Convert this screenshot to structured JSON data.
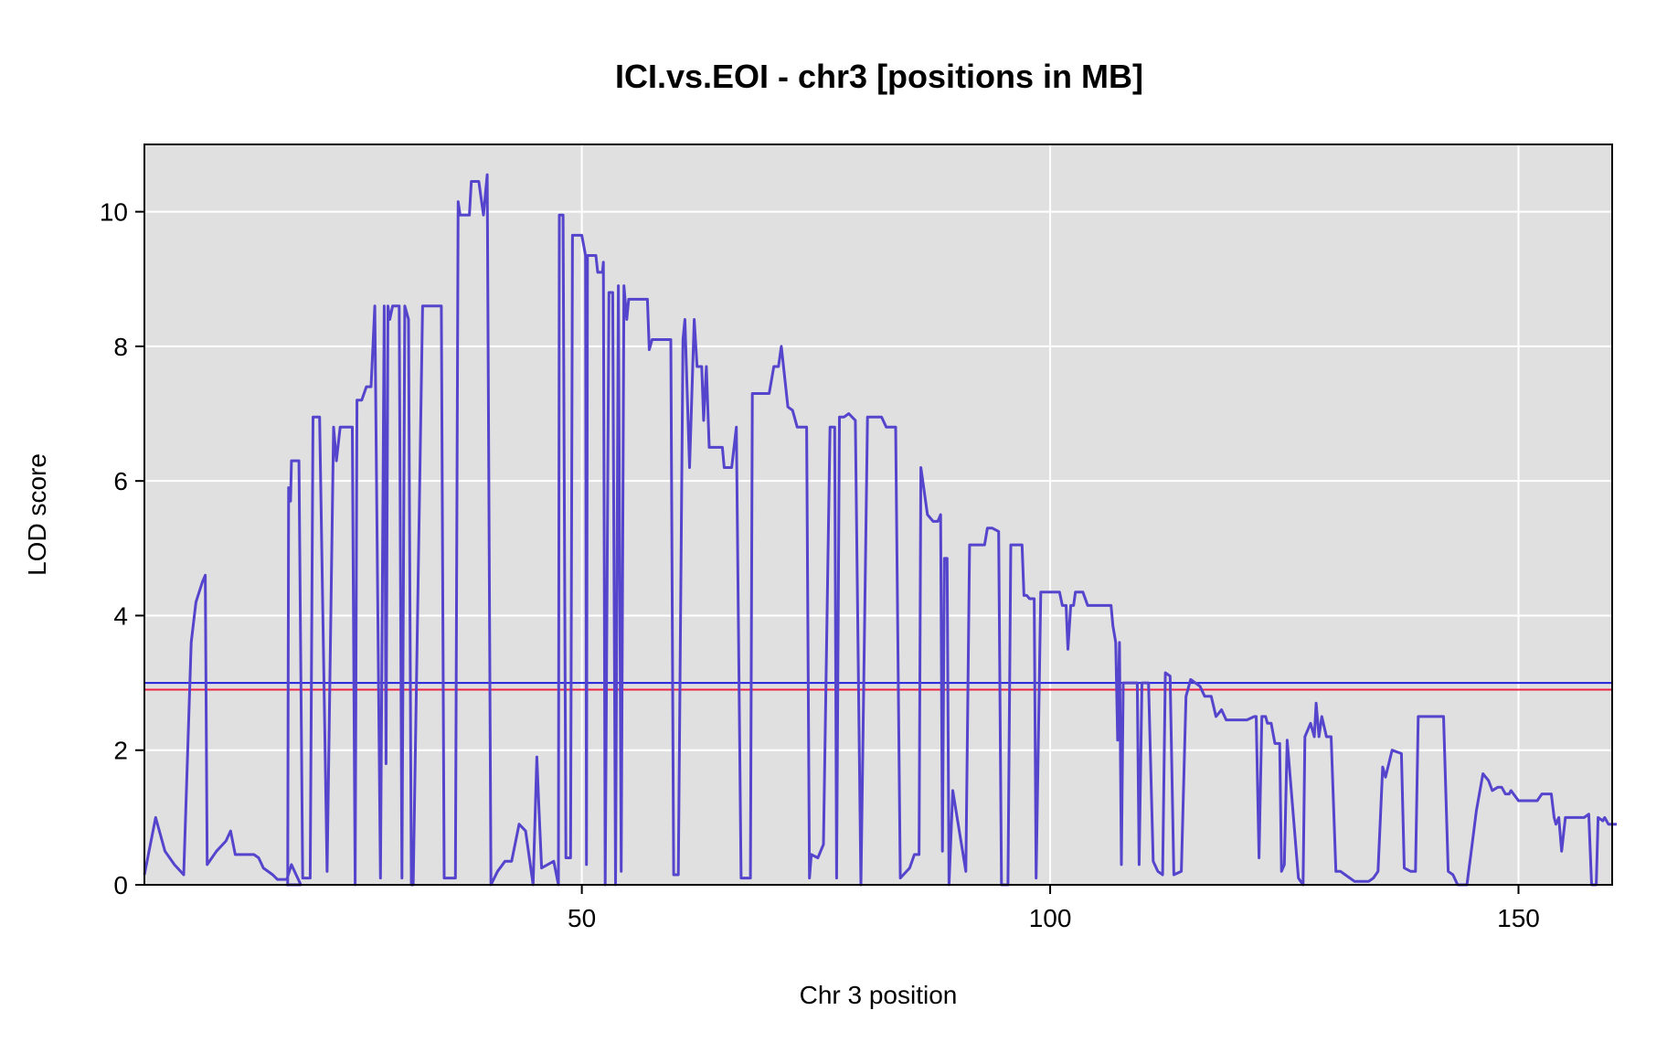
{
  "chart_data": {
    "type": "line",
    "title": "ICI.vs.EOI - chr3 [positions in MB]",
    "xlabel": "Chr 3 position",
    "ylabel": "LOD score",
    "xlim": [
      3.3,
      160
    ],
    "ylim": [
      0,
      11
    ],
    "xticks": [
      50,
      100,
      150
    ],
    "yticks": [
      0,
      2,
      4,
      6,
      8,
      10
    ],
    "grid": true,
    "background_color": "#e0e0e0",
    "grid_color": "#ffffff",
    "series_color": "#5544cc",
    "thresholds": [
      {
        "name": "threshold-blue",
        "value": 3.0,
        "color": "#2222dd"
      },
      {
        "name": "threshold-red",
        "value": 2.9,
        "color": "#ee2244"
      }
    ],
    "series": [
      {
        "name": "LOD",
        "points": [
          [
            3.3,
            0.15
          ],
          [
            4.5,
            1.0
          ],
          [
            5.5,
            0.5
          ],
          [
            6.5,
            0.3
          ],
          [
            7.5,
            0.15
          ],
          [
            8.3,
            3.6
          ],
          [
            8.8,
            4.2
          ],
          [
            9.5,
            4.5
          ],
          [
            9.8,
            4.6
          ],
          [
            10.0,
            0.3
          ],
          [
            11,
            0.5
          ],
          [
            12,
            0.65
          ],
          [
            12.5,
            0.8
          ],
          [
            13,
            0.45
          ],
          [
            14,
            0.45
          ],
          [
            15,
            0.45
          ],
          [
            15.5,
            0.4
          ],
          [
            16,
            0.25
          ],
          [
            17,
            0.15
          ],
          [
            17.5,
            0.08
          ],
          [
            18.5,
            0.08
          ],
          [
            19,
            0.3
          ],
          [
            19.5,
            0.15
          ],
          [
            20,
            0.0
          ],
          [
            18.5,
            0.0
          ],
          [
            18.6,
            0.0
          ],
          [
            18.7,
            5.9
          ],
          [
            18.9,
            5.7
          ],
          [
            19.0,
            6.3
          ],
          [
            19.8,
            6.3
          ],
          [
            20.2,
            0.1
          ],
          [
            21,
            0.1
          ],
          [
            21.3,
            6.95
          ],
          [
            22,
            6.95
          ],
          [
            22.8,
            0.2
          ],
          [
            23.5,
            6.8
          ],
          [
            23.8,
            6.3
          ],
          [
            24.2,
            6.8
          ],
          [
            25.5,
            6.8
          ],
          [
            25.8,
            0.0
          ],
          [
            26.0,
            7.2
          ],
          [
            26.5,
            7.2
          ],
          [
            27,
            7.4
          ],
          [
            27.5,
            7.4
          ],
          [
            27.9,
            8.6
          ],
          [
            28.5,
            0.1
          ],
          [
            28.9,
            8.6
          ],
          [
            29.1,
            1.8
          ],
          [
            29.3,
            8.6
          ],
          [
            29.5,
            8.4
          ],
          [
            29.8,
            8.6
          ],
          [
            30.5,
            8.6
          ],
          [
            30.8,
            0.1
          ],
          [
            31.1,
            8.6
          ],
          [
            31.5,
            8.4
          ],
          [
            31.8,
            0.0
          ],
          [
            32.0,
            0.0
          ],
          [
            33,
            8.6
          ],
          [
            35,
            8.6
          ],
          [
            35.3,
            0.1
          ],
          [
            36.5,
            0.1
          ],
          [
            36.8,
            10.15
          ],
          [
            37,
            9.95
          ],
          [
            38,
            9.95
          ],
          [
            38.2,
            10.45
          ],
          [
            39,
            10.45
          ],
          [
            39.5,
            9.95
          ],
          [
            39.9,
            10.55
          ],
          [
            40.3,
            0.0
          ],
          [
            41,
            0.2
          ],
          [
            41.8,
            0.35
          ],
          [
            42.5,
            0.35
          ],
          [
            43.3,
            0.9
          ],
          [
            44,
            0.8
          ],
          [
            44.8,
            0.0
          ],
          [
            45.2,
            1.9
          ],
          [
            45.4,
            1.2
          ],
          [
            45.7,
            0.25
          ],
          [
            47,
            0.35
          ],
          [
            47.5,
            0.0
          ],
          [
            47.6,
            9.95
          ],
          [
            48,
            9.95
          ],
          [
            48.3,
            0.4
          ],
          [
            48.8,
            0.4
          ],
          [
            49,
            9.65
          ],
          [
            50,
            9.65
          ],
          [
            50.4,
            9.35
          ],
          [
            50.5,
            0.3
          ],
          [
            50.6,
            9.35
          ],
          [
            51.5,
            9.35
          ],
          [
            51.7,
            9.1
          ],
          [
            52.2,
            9.1
          ],
          [
            52.3,
            9.25
          ],
          [
            52.5,
            0.0
          ],
          [
            52.9,
            8.8
          ],
          [
            53.3,
            8.8
          ],
          [
            53.6,
            0.0
          ],
          [
            53.9,
            8.9
          ],
          [
            54.2,
            0.2
          ],
          [
            54.5,
            8.9
          ],
          [
            54.8,
            8.4
          ],
          [
            55,
            8.7
          ],
          [
            57,
            8.7
          ],
          [
            57.2,
            7.95
          ],
          [
            57.5,
            8.1
          ],
          [
            59,
            8.1
          ],
          [
            59.5,
            8.1
          ],
          [
            59.8,
            0.15
          ],
          [
            60.3,
            0.15
          ],
          [
            60.8,
            8.1
          ],
          [
            61,
            8.4
          ],
          [
            61.5,
            6.2
          ],
          [
            62,
            8.4
          ],
          [
            62.3,
            7.7
          ],
          [
            62.8,
            7.7
          ],
          [
            63,
            6.9
          ],
          [
            63.3,
            7.7
          ],
          [
            63.6,
            6.5
          ],
          [
            65,
            6.5
          ],
          [
            65.2,
            6.2
          ],
          [
            66,
            6.2
          ],
          [
            66.5,
            6.8
          ],
          [
            67,
            0.1
          ],
          [
            68,
            0.1
          ],
          [
            68.2,
            7.3
          ],
          [
            70,
            7.3
          ],
          [
            70.5,
            7.7
          ],
          [
            71,
            7.7
          ],
          [
            71.3,
            8.0
          ],
          [
            72,
            7.1
          ],
          [
            72.5,
            7.05
          ],
          [
            73,
            6.8
          ],
          [
            74,
            6.8
          ],
          [
            74.3,
            0.1
          ],
          [
            74.5,
            0.45
          ],
          [
            75.2,
            0.4
          ],
          [
            75.8,
            0.6
          ],
          [
            76.5,
            6.8
          ],
          [
            77,
            6.8
          ],
          [
            77.2,
            0.1
          ],
          [
            77.5,
            6.95
          ],
          [
            78,
            6.95
          ],
          [
            78.5,
            7.0
          ],
          [
            79.2,
            6.9
          ],
          [
            79.8,
            0.0
          ],
          [
            80.5,
            6.95
          ],
          [
            81,
            6.95
          ],
          [
            82,
            6.95
          ],
          [
            82.5,
            6.8
          ],
          [
            83.5,
            6.8
          ],
          [
            84,
            0.1
          ],
          [
            85,
            0.25
          ],
          [
            85.5,
            0.45
          ],
          [
            86,
            0.45
          ],
          [
            86.2,
            6.2
          ],
          [
            86.5,
            5.9
          ],
          [
            86.9,
            5.5
          ],
          [
            87.5,
            5.4
          ],
          [
            88,
            5.4
          ],
          [
            88.3,
            5.5
          ],
          [
            88.5,
            0.5
          ],
          [
            88.7,
            4.85
          ],
          [
            89,
            4.85
          ],
          [
            89.2,
            0.0
          ],
          [
            89.6,
            1.4
          ],
          [
            91,
            0.2
          ],
          [
            91.4,
            5.05
          ],
          [
            93,
            5.05
          ],
          [
            93.3,
            5.3
          ],
          [
            93.8,
            5.3
          ],
          [
            94.5,
            5.25
          ],
          [
            94.8,
            0.0
          ],
          [
            95.5,
            0.0
          ],
          [
            95.8,
            5.05
          ],
          [
            97,
            5.05
          ],
          [
            97.2,
            4.3
          ],
          [
            97.5,
            4.3
          ],
          [
            97.8,
            4.25
          ],
          [
            98.3,
            4.25
          ],
          [
            98.5,
            0.1
          ],
          [
            99,
            4.35
          ],
          [
            101,
            4.35
          ],
          [
            101.3,
            4.15
          ],
          [
            101.7,
            4.15
          ],
          [
            101.9,
            3.5
          ],
          [
            102.2,
            4.15
          ],
          [
            102.5,
            4.15
          ],
          [
            102.7,
            4.35
          ],
          [
            103.5,
            4.35
          ],
          [
            104,
            4.15
          ],
          [
            105.5,
            4.15
          ],
          [
            106.5,
            4.15
          ],
          [
            106.7,
            3.85
          ],
          [
            107,
            3.6
          ],
          [
            107.2,
            2.15
          ],
          [
            107.4,
            3.6
          ],
          [
            107.6,
            0.3
          ],
          [
            107.8,
            3.0
          ],
          [
            109.3,
            3.0
          ],
          [
            109.5,
            0.3
          ],
          [
            109.8,
            3.0
          ],
          [
            110.5,
            3.0
          ],
          [
            111,
            0.35
          ],
          [
            111.5,
            0.2
          ],
          [
            112,
            0.15
          ],
          [
            112.3,
            3.15
          ],
          [
            112.8,
            3.1
          ],
          [
            113.2,
            0.15
          ],
          [
            114,
            0.2
          ],
          [
            114.5,
            2.8
          ],
          [
            115,
            3.05
          ],
          [
            116,
            2.95
          ],
          [
            116.5,
            2.8
          ],
          [
            117.2,
            2.8
          ],
          [
            117.7,
            2.5
          ],
          [
            118.3,
            2.6
          ],
          [
            118.8,
            2.45
          ],
          [
            121,
            2.45
          ],
          [
            121.8,
            2.5
          ],
          [
            122,
            2.5
          ],
          [
            122.3,
            0.4
          ],
          [
            122.6,
            2.5
          ],
          [
            123,
            2.5
          ],
          [
            123.2,
            2.4
          ],
          [
            123.6,
            2.4
          ],
          [
            124,
            2.1
          ],
          [
            124.5,
            2.1
          ],
          [
            124.7,
            0.2
          ],
          [
            125,
            0.3
          ],
          [
            125.3,
            2.15
          ],
          [
            126.5,
            0.1
          ],
          [
            127,
            0.0
          ],
          [
            127.2,
            2.2
          ],
          [
            127.8,
            2.4
          ],
          [
            128.2,
            2.2
          ],
          [
            128.4,
            2.7
          ],
          [
            128.7,
            2.2
          ],
          [
            129,
            2.5
          ],
          [
            129.5,
            2.2
          ],
          [
            130,
            2.2
          ],
          [
            130.5,
            0.2
          ],
          [
            131,
            0.2
          ],
          [
            131.5,
            0.15
          ],
          [
            132.5,
            0.05
          ],
          [
            134,
            0.05
          ],
          [
            134.5,
            0.1
          ],
          [
            135,
            0.2
          ],
          [
            135.5,
            1.75
          ],
          [
            135.8,
            1.6
          ],
          [
            136.5,
            2.0
          ],
          [
            137.5,
            1.95
          ],
          [
            137.8,
            0.25
          ],
          [
            138.5,
            0.2
          ],
          [
            139,
            0.2
          ],
          [
            139.3,
            2.5
          ],
          [
            142,
            2.5
          ],
          [
            142.5,
            0.2
          ],
          [
            143,
            0.15
          ],
          [
            143.5,
            0.0
          ],
          [
            144.5,
            0.0
          ],
          [
            145,
            0.55
          ],
          [
            145.5,
            1.1
          ],
          [
            146.2,
            1.65
          ],
          [
            146.8,
            1.55
          ],
          [
            147.2,
            1.4
          ],
          [
            147.8,
            1.45
          ],
          [
            148.2,
            1.45
          ],
          [
            148.6,
            1.35
          ],
          [
            149,
            1.35
          ],
          [
            149.2,
            1.4
          ],
          [
            150,
            1.25
          ],
          [
            152,
            1.25
          ],
          [
            152.5,
            1.35
          ],
          [
            153.5,
            1.35
          ],
          [
            153.8,
            1.0
          ],
          [
            154,
            0.9
          ],
          [
            154.3,
            1.0
          ],
          [
            154.6,
            0.5
          ],
          [
            155,
            1.0
          ],
          [
            157,
            1.0
          ],
          [
            157.5,
            1.05
          ],
          [
            157.8,
            0.0
          ],
          [
            158.3,
            0.0
          ],
          [
            158.5,
            1.0
          ],
          [
            159,
            0.95
          ],
          [
            159.2,
            1.0
          ],
          [
            159.6,
            0.9
          ],
          [
            160.5,
            0.9
          ]
        ]
      }
    ]
  }
}
